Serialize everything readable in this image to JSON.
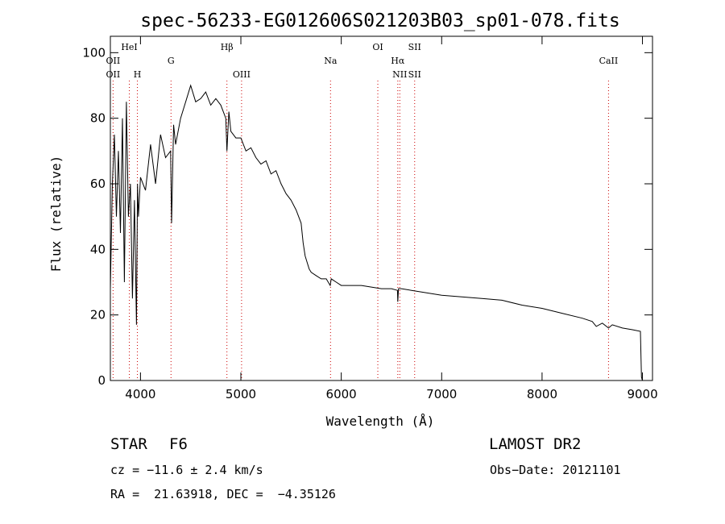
{
  "chart_data": {
    "type": "line",
    "title": "spec-56233-EG012606S021203B03_sp01-078.fits",
    "xlabel": "Wavelength (Å)",
    "ylabel": "Flux (relative)",
    "xlim": [
      3700,
      9100
    ],
    "ylim": [
      0,
      105
    ],
    "x_ticks": [
      4000,
      5000,
      6000,
      7000,
      8000,
      9000
    ],
    "y_ticks": [
      0,
      20,
      40,
      60,
      80,
      100
    ],
    "grid": false,
    "line_color": "#000000",
    "marker_color": "#cc0000",
    "series": [
      {
        "x": [
          3700,
          3720,
          3740,
          3760,
          3780,
          3800,
          3820,
          3840,
          3860,
          3880,
          3900,
          3920,
          3940,
          3960,
          3970,
          3980,
          4000,
          4050,
          4100,
          4150,
          4200,
          4250,
          4300,
          4310,
          4330,
          4350,
          4400,
          4450,
          4500,
          4550,
          4600,
          4650,
          4700,
          4750,
          4800,
          4850,
          4861,
          4880,
          4900,
          4950,
          5000,
          5050,
          5100,
          5150,
          5200,
          5250,
          5300,
          5350,
          5400,
          5450,
          5500,
          5550,
          5600,
          5620,
          5640,
          5660,
          5680,
          5700,
          5750,
          5800,
          5850,
          5890,
          5900,
          5950,
          6000,
          6100,
          6200,
          6300,
          6400,
          6500,
          6560,
          6563,
          6570,
          6600,
          6700,
          6800,
          6900,
          7000,
          7200,
          7400,
          7600,
          7800,
          8000,
          8200,
          8400,
          8500,
          8540,
          8600,
          8662,
          8700,
          8800,
          8900,
          8980,
          8990,
          9000
        ],
        "y": [
          28,
          60,
          75,
          50,
          70,
          45,
          80,
          30,
          85,
          50,
          60,
          25,
          55,
          17,
          60,
          50,
          62,
          58,
          72,
          60,
          75,
          68,
          70,
          48,
          78,
          72,
          80,
          85,
          90,
          85,
          86,
          88,
          84,
          86,
          84,
          80,
          70,
          82,
          76,
          74,
          74,
          70,
          71,
          68,
          66,
          67,
          63,
          64,
          60,
          57,
          55,
          52,
          48,
          42,
          38,
          36,
          34,
          33,
          32,
          31,
          31,
          29,
          31,
          30,
          29,
          29,
          29,
          28.5,
          28,
          28,
          27.5,
          24,
          28,
          28,
          27.5,
          27,
          26.5,
          26,
          25.5,
          25,
          24.5,
          23,
          22,
          20.5,
          19,
          18,
          16.5,
          17.5,
          16,
          17,
          16,
          15.5,
          15,
          1,
          0
        ]
      }
    ],
    "lines": [
      {
        "name": "OII",
        "wavelength": 3727,
        "row": 1
      },
      {
        "name": "OII",
        "wavelength": 3727,
        "row": 2
      },
      {
        "name": "HeI",
        "wavelength": 3889,
        "row": 0
      },
      {
        "name": "H",
        "wavelength": 3969,
        "row": 2
      },
      {
        "name": "G",
        "wavelength": 4304,
        "row": 1
      },
      {
        "name": "Hβ",
        "wavelength": 4861,
        "row": 0
      },
      {
        "name": "OIII",
        "wavelength": 5007,
        "row": 2
      },
      {
        "name": "Na",
        "wavelength": 5893,
        "row": 1
      },
      {
        "name": "OI",
        "wavelength": 6364,
        "row": 0
      },
      {
        "name": "Hα",
        "wavelength": 6563,
        "row": 1
      },
      {
        "name": "NII",
        "wavelength": 6583,
        "row": 2
      },
      {
        "name": "SII",
        "wavelength": 6731,
        "row": 0
      },
      {
        "name": "SII",
        "wavelength": 6731,
        "row": 2
      },
      {
        "name": "CaII",
        "wavelength": 8662,
        "row": 1
      }
    ]
  },
  "info": {
    "class_label": "STAR",
    "subclass": "F6",
    "survey": "LAMOST DR2",
    "cz": "cz = −11.6 ± 2.4 km/s",
    "obs_date": "Obs−Date: 20121101",
    "coords": "RA =  21.63918, DEC =  −4.35126"
  }
}
